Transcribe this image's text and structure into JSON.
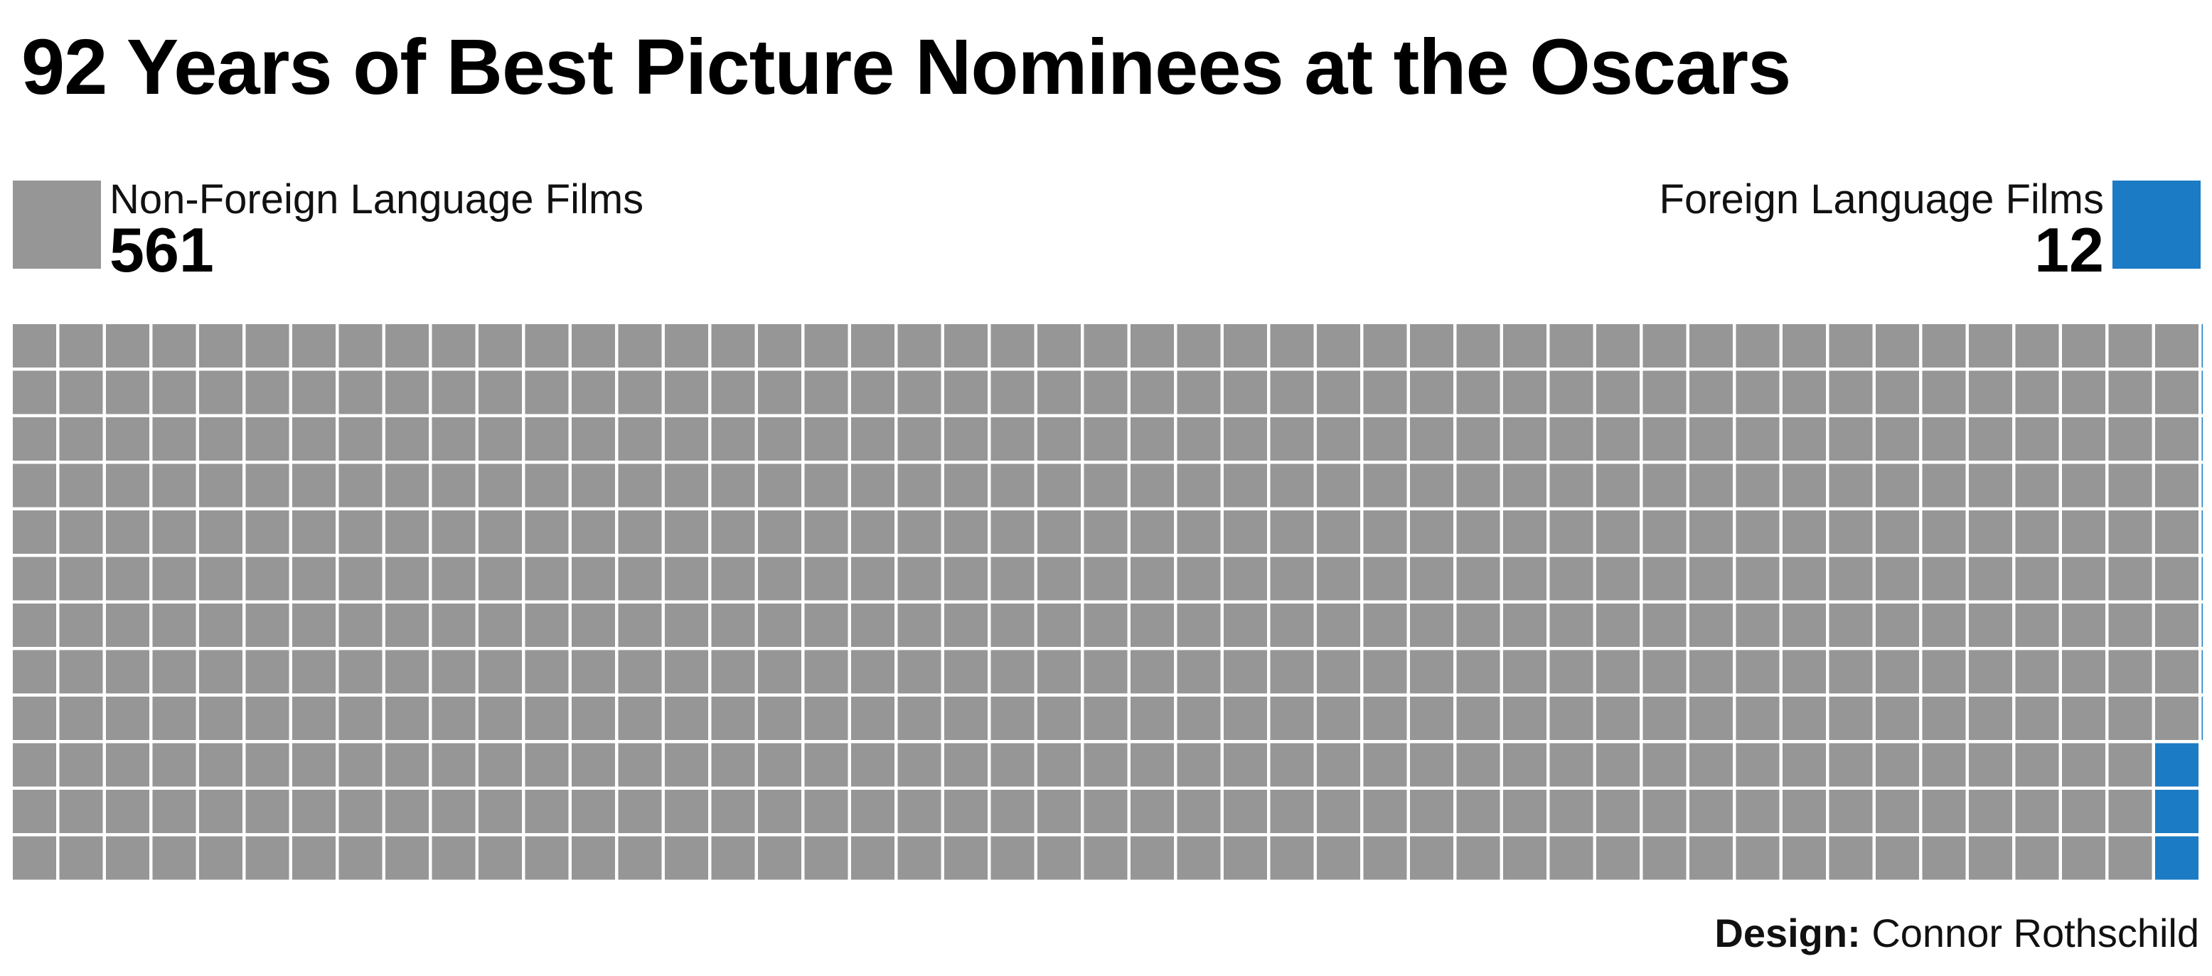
{
  "title": "92 Years of Best Picture Nominees at the Oscars",
  "legend": {
    "left": {
      "label": "Non-Foreign Language Films",
      "count": "561",
      "color": "#969696"
    },
    "right": {
      "label": "Foreign Language Films",
      "count": "12",
      "color": "#1b7bc4"
    }
  },
  "credit": {
    "label": "Design:",
    "name": "Connor Rothschild"
  },
  "chart_data": {
    "type": "waffle",
    "title": "92 Years of Best Picture Nominees at the Oscars",
    "rows": 12,
    "columns": 47,
    "fill_order": "column-major, left to right",
    "series": [
      {
        "name": "Non-Foreign Language Films",
        "value": 561,
        "color": "#969696"
      },
      {
        "name": "Foreign Language Films",
        "value": 12,
        "color": "#1b7bc4"
      }
    ],
    "total": 573
  }
}
